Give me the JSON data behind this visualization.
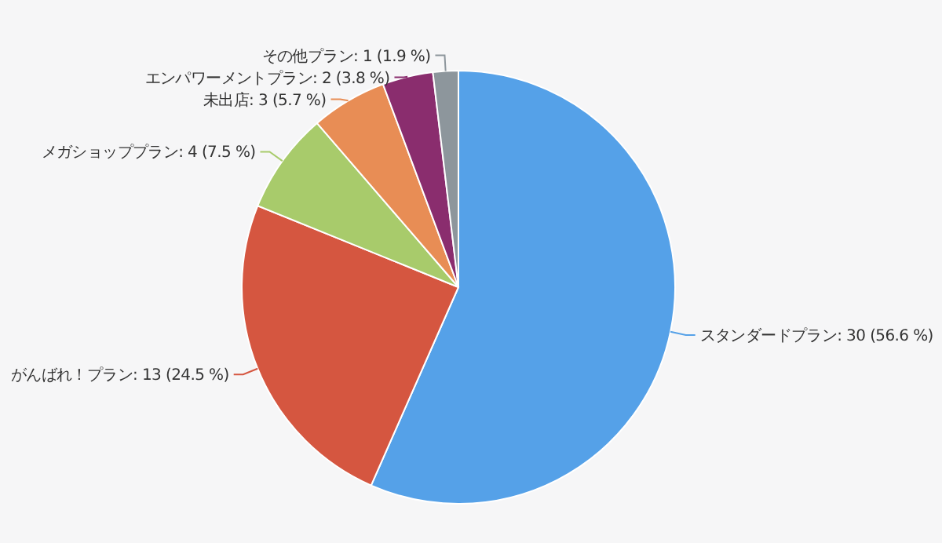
{
  "chart_data": {
    "type": "pie",
    "categories": [
      "スタンダードプラン",
      "がんばれ！プラン",
      "メガショッププラン",
      "未出店",
      "エンパワーメントプラン",
      "その他プラン"
    ],
    "values": [
      30,
      13,
      4,
      3,
      2,
      1
    ],
    "value_labels": [
      "30 (56.6 %)",
      "13 (24.5 %)",
      "4 (7.5 %)",
      "3 (5.7 %)",
      "2 (3.8 %)",
      "1 (1.9 %)"
    ],
    "colors": [
      "#55a1e8",
      "#d55640",
      "#a8cb6b",
      "#e88d55",
      "#8a2d6e",
      "#8d969c"
    ]
  }
}
